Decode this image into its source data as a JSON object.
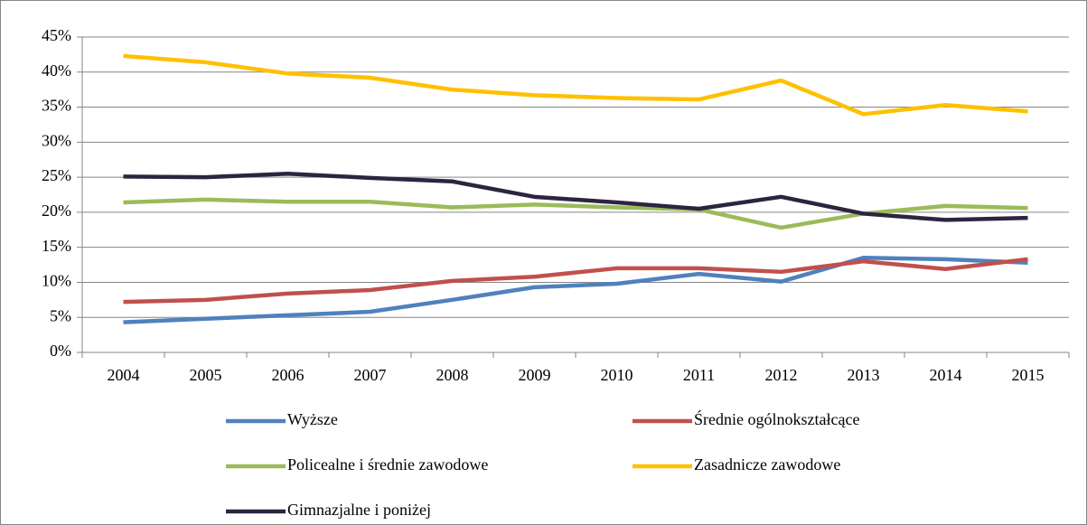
{
  "chart_data": {
    "type": "line",
    "categories": [
      "2004",
      "2005",
      "2006",
      "2007",
      "2008",
      "2009",
      "2010",
      "2011",
      "2012",
      "2013",
      "2014",
      "2015"
    ],
    "series": [
      {
        "name": "Wyższe",
        "color": "#4f81bd",
        "values": [
          4.3,
          4.8,
          5.3,
          5.8,
          7.5,
          9.3,
          9.8,
          11.2,
          10.1,
          13.5,
          13.3,
          12.8
        ]
      },
      {
        "name": "Średnie ogólnokształcące",
        "color": "#c0504d",
        "values": [
          7.2,
          7.5,
          8.4,
          8.9,
          10.2,
          10.8,
          12.0,
          12.0,
          11.5,
          13.0,
          11.9,
          13.3
        ]
      },
      {
        "name": "Policealne i średnie zawodowe",
        "color": "#9bbb59",
        "values": [
          21.4,
          21.8,
          21.5,
          21.5,
          20.7,
          21.1,
          20.7,
          20.4,
          17.8,
          19.8,
          20.9,
          20.6
        ]
      },
      {
        "name": "Zasadnicze zawodowe",
        "color": "#ffc000",
        "values": [
          42.3,
          41.4,
          39.8,
          39.2,
          37.5,
          36.7,
          36.3,
          36.1,
          38.8,
          34.0,
          35.3,
          34.4
        ]
      },
      {
        "name": "Gimnazjalne i poniżej",
        "color": "#2d2440",
        "values": [
          25.1,
          25.0,
          25.5,
          24.9,
          24.4,
          22.2,
          21.4,
          20.5,
          22.2,
          19.8,
          18.9,
          19.2
        ]
      }
    ],
    "ylim": [
      0,
      45
    ],
    "yticks": [
      {
        "value": 0,
        "label": "0%"
      },
      {
        "value": 5,
        "label": "5%"
      },
      {
        "value": 10,
        "label": "10%"
      },
      {
        "value": 15,
        "label": "15%"
      },
      {
        "value": 20,
        "label": "20%"
      },
      {
        "value": 25,
        "label": "25%"
      },
      {
        "value": 30,
        "label": "30%"
      },
      {
        "value": 35,
        "label": "35%"
      },
      {
        "value": 40,
        "label": "40%"
      },
      {
        "value": 45,
        "label": "45%"
      }
    ],
    "grid": true,
    "legend": "bottom"
  }
}
